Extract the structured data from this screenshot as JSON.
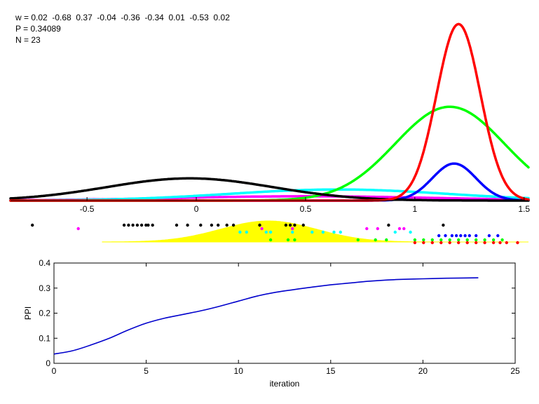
{
  "info": {
    "w_line": "w = 0.02  -0.68  0.37  -0.04  -0.36  -0.34  0.01  -0.53  0.02",
    "p_line": "P = 0.34089",
    "n_line": "N = 23"
  },
  "colors": {
    "red": "#ff0000",
    "green": "#00ff00",
    "blue": "#0000ff",
    "cyan": "#00ffff",
    "magenta": "#ff00ff",
    "black": "#000000",
    "yellow": "#ffff00",
    "ppi": "#0000cc"
  },
  "chart_data": [
    {
      "type": "line",
      "subtype": "gaussian-densities",
      "xlim": [
        -0.85,
        1.52
      ],
      "ylim": [
        0,
        1.5
      ],
      "xticks": [
        -0.5,
        0,
        0.5,
        1,
        1.5
      ],
      "xtick_labels": [
        "-0.5",
        "0",
        "0.5",
        "1",
        "1.5"
      ],
      "grid": false,
      "series": [
        {
          "color": "red",
          "mean": 1.2,
          "sd": 0.1,
          "peak": 1.43
        },
        {
          "color": "green",
          "mean": 1.16,
          "sd": 0.25,
          "peak": 0.76
        },
        {
          "color": "blue",
          "mean": 1.18,
          "sd": 0.1,
          "peak": 0.3
        },
        {
          "color": "black",
          "mean": -0.03,
          "sd": 0.38,
          "peak": 0.18
        },
        {
          "color": "cyan",
          "mean": 0.65,
          "sd": 0.5,
          "peak": 0.09
        },
        {
          "color": "magenta",
          "mean": 0.5,
          "sd": 0.6,
          "peak": 0.035
        }
      ]
    },
    {
      "type": "scatter",
      "subtype": "sample-strip",
      "xlim": [
        -0.85,
        1.52
      ],
      "density": {
        "color": "yellow",
        "mean": 0.33,
        "sd": 0.22
      },
      "points": {
        "black": [
          -0.75,
          -0.33,
          -0.31,
          -0.29,
          -0.27,
          -0.25,
          -0.23,
          -0.22,
          -0.2,
          -0.09,
          -0.04,
          0.02,
          0.07,
          0.1,
          0.14,
          0.17,
          0.29,
          0.41,
          0.43,
          0.45,
          0.49,
          0.88,
          1.13
        ],
        "magenta": [
          -0.54,
          0.3,
          0.44,
          0.78,
          0.83,
          0.93,
          0.95
        ],
        "cyan": [
          0.2,
          0.23,
          0.32,
          0.34,
          0.44,
          0.53,
          0.58,
          0.63,
          0.66,
          0.91,
          0.98
        ],
        "green": [
          0.34,
          0.42,
          0.45,
          0.74,
          0.82,
          0.87,
          1.0,
          1.04,
          1.08,
          1.12,
          1.16,
          1.2,
          1.24,
          1.28,
          1.32,
          1.36,
          1.4
        ],
        "blue": [
          1.11,
          1.14,
          1.17,
          1.19,
          1.21,
          1.23,
          1.25,
          1.28,
          1.34,
          1.38
        ],
        "red": [
          1.0,
          1.04,
          1.08,
          1.12,
          1.16,
          1.2,
          1.24,
          1.28,
          1.32,
          1.36,
          1.39,
          1.42,
          1.47
        ]
      }
    },
    {
      "type": "line",
      "subtype": "ppi-convergence",
      "xlabel": "iteration",
      "ylabel": "PPI",
      "xlim": [
        0,
        25
      ],
      "ylim": [
        0,
        0.4
      ],
      "xticks": [
        0,
        5,
        10,
        15,
        20,
        25
      ],
      "yticks": [
        0,
        0.1,
        0.2,
        0.3,
        0.4
      ],
      "x": [
        0,
        1,
        2,
        3,
        4,
        5,
        6,
        7,
        8,
        9,
        10,
        11,
        12,
        13,
        14,
        15,
        16,
        17,
        18,
        19,
        20,
        21,
        22,
        23
      ],
      "values": [
        0.037,
        0.05,
        0.073,
        0.1,
        0.132,
        0.16,
        0.18,
        0.195,
        0.21,
        0.228,
        0.248,
        0.268,
        0.283,
        0.294,
        0.304,
        0.313,
        0.32,
        0.327,
        0.332,
        0.335,
        0.337,
        0.339,
        0.34,
        0.341
      ]
    }
  ]
}
